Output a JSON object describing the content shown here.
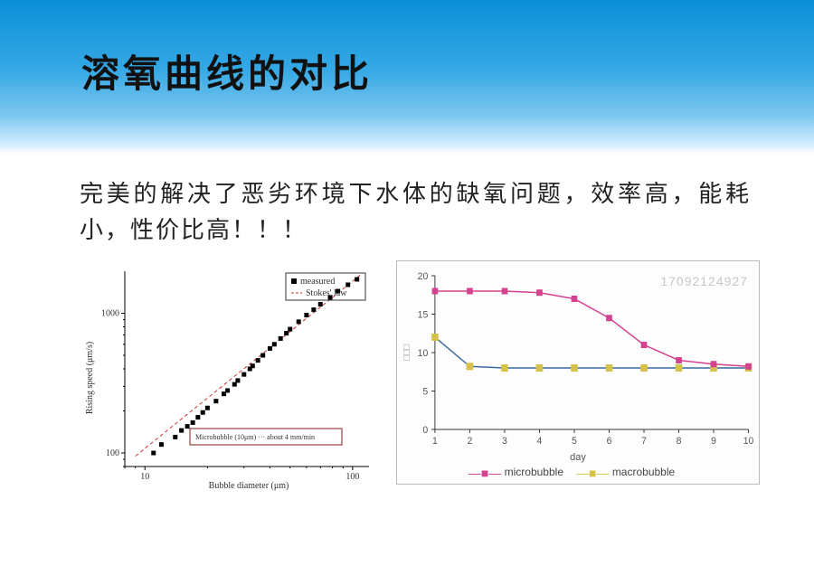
{
  "header": {
    "title": "溶氧曲线的对比",
    "title_fontsize": 42,
    "gradient_colors": [
      "#0a8fd8",
      "#35a8e5",
      "#7cc7ef",
      "#d8efff",
      "#ffffff"
    ]
  },
  "subtitle": {
    "text": "完美的解决了恶劣环境下水体的缺氧问题，效率高，能耗小，性价比高！！！",
    "fontsize": 26,
    "color": "#222222"
  },
  "left_chart": {
    "type": "scatter-loglog",
    "xlabel": "Bubble diameter (μm)",
    "ylabel": "Rising speed (μm/s)",
    "label_fontsize": 10,
    "xlim": [
      8,
      120
    ],
    "ylim": [
      80,
      2000
    ],
    "xticks": [
      10,
      100
    ],
    "yticks": [
      100,
      1000
    ],
    "line": {
      "label": "Stokes' law",
      "color": "#cc3333",
      "dash": "4 3",
      "width": 1,
      "points": [
        [
          9,
          95
        ],
        [
          110,
          1900
        ]
      ]
    },
    "scatter": {
      "label": "measured",
      "marker": "square",
      "size": 5,
      "color": "#000000",
      "points": [
        [
          11,
          100
        ],
        [
          12,
          115
        ],
        [
          14,
          130
        ],
        [
          15,
          145
        ],
        [
          16,
          155
        ],
        [
          17,
          165
        ],
        [
          18,
          180
        ],
        [
          19,
          195
        ],
        [
          20,
          210
        ],
        [
          22,
          235
        ],
        [
          24,
          265
        ],
        [
          25,
          280
        ],
        [
          27,
          310
        ],
        [
          28,
          330
        ],
        [
          30,
          365
        ],
        [
          32,
          400
        ],
        [
          33,
          420
        ],
        [
          35,
          460
        ],
        [
          37,
          500
        ],
        [
          40,
          560
        ],
        [
          42,
          600
        ],
        [
          45,
          660
        ],
        [
          48,
          720
        ],
        [
          50,
          770
        ],
        [
          55,
          870
        ],
        [
          60,
          970
        ],
        [
          65,
          1060
        ],
        [
          70,
          1160
        ],
        [
          78,
          1300
        ],
        [
          85,
          1440
        ],
        [
          95,
          1600
        ],
        [
          105,
          1750
        ]
      ]
    },
    "legend_box": {
      "text": "Microbubble (10μm)  ···  about 4 mm/min",
      "border": "#8b1a1a",
      "fontsize": 8
    },
    "legend_top": {
      "items": [
        {
          "sym": "■",
          "label": "measured",
          "color": "#000000"
        },
        {
          "sym": "---",
          "label": "Stokes' law",
          "color": "#cc3333"
        }
      ],
      "border": "#333333",
      "fontsize": 9
    },
    "background": "#ffffff"
  },
  "right_chart": {
    "type": "line",
    "xlabel": "day",
    "ylabel": "",
    "label_fontsize": 11,
    "xlim": [
      1,
      10
    ],
    "ylim": [
      0,
      20
    ],
    "xticks": [
      1,
      2,
      3,
      4,
      5,
      6,
      7,
      8,
      9,
      10
    ],
    "yticks": [
      0,
      5,
      10,
      15,
      20
    ],
    "grid_color": "#e0e0e0",
    "background": "#fdfdfd",
    "border_color": "#bbbbbb",
    "watermark": "17092124927",
    "watermark_color": "#c8c8c8",
    "series": [
      {
        "name": "microbubble",
        "color": "#d4418e",
        "marker": "square",
        "marker_size": 7,
        "line_width": 1.5,
        "x": [
          1,
          2,
          3,
          4,
          5,
          6,
          7,
          8,
          9,
          10
        ],
        "y": [
          18,
          18,
          18,
          17.8,
          17,
          14.5,
          11,
          9,
          8.5,
          8.2
        ]
      },
      {
        "name": "macrobubble",
        "color": "#d6c24a",
        "secondary_line_color": "#3b6aa0",
        "marker": "square",
        "marker_size": 7,
        "line_width": 1.5,
        "x": [
          1,
          2,
          3,
          4,
          5,
          6,
          7,
          8,
          9,
          10
        ],
        "y": [
          12,
          8.2,
          8,
          8,
          8,
          8,
          8,
          8,
          8,
          8
        ]
      }
    ],
    "legend": {
      "items": [
        {
          "label": "microbubble",
          "color": "#d4418e",
          "marker": "■"
        },
        {
          "label": "macrobubble",
          "color": "#d6c24a",
          "marker": "■"
        }
      ],
      "fontsize": 12,
      "position": "bottom"
    }
  }
}
